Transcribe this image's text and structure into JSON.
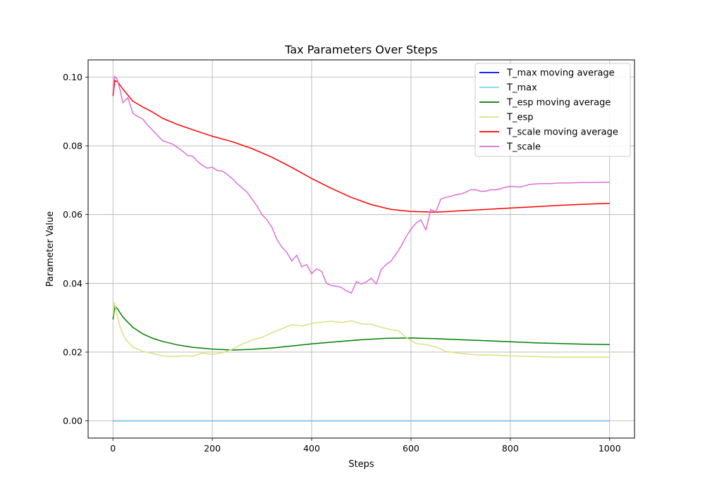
{
  "chart_data": {
    "type": "line",
    "title": "Tax Parameters Over Steps",
    "xlabel": "Steps",
    "ylabel": "Parameter Value",
    "xlim": [
      -50,
      1050
    ],
    "ylim": [
      -0.005,
      0.105
    ],
    "xticks": [
      0,
      200,
      400,
      600,
      800,
      1000
    ],
    "yticks": [
      0.0,
      0.02,
      0.04,
      0.06,
      0.08,
      0.1
    ],
    "xtick_labels": [
      "0",
      "200",
      "400",
      "600",
      "800",
      "1000"
    ],
    "ytick_labels": [
      "0.00",
      "0.02",
      "0.04",
      "0.06",
      "0.08",
      "0.10"
    ],
    "grid": true,
    "legend_position": "top-right",
    "series": [
      {
        "name": "T_max moving average",
        "color": "#0000ff",
        "points": [
          [
            0,
            0.0
          ],
          [
            1000,
            0.0
          ]
        ]
      },
      {
        "name": "T_max",
        "color": "#7fd4e6",
        "points": [
          [
            0,
            0.0
          ],
          [
            1000,
            0.0
          ]
        ]
      },
      {
        "name": "T_esp moving average",
        "color": "#008000",
        "points": [
          [
            0,
            0.0295
          ],
          [
            4,
            0.0332
          ],
          [
            8,
            0.0328
          ],
          [
            20,
            0.0302
          ],
          [
            40,
            0.0272
          ],
          [
            60,
            0.0253
          ],
          [
            80,
            0.024
          ],
          [
            100,
            0.0231
          ],
          [
            130,
            0.0221
          ],
          [
            160,
            0.0214
          ],
          [
            200,
            0.0209
          ],
          [
            240,
            0.0206
          ],
          [
            280,
            0.0208
          ],
          [
            320,
            0.0212
          ],
          [
            360,
            0.0218
          ],
          [
            400,
            0.0224
          ],
          [
            450,
            0.023
          ],
          [
            500,
            0.0236
          ],
          [
            550,
            0.024
          ],
          [
            600,
            0.0241
          ],
          [
            650,
            0.0239
          ],
          [
            700,
            0.0236
          ],
          [
            750,
            0.0233
          ],
          [
            800,
            0.023
          ],
          [
            850,
            0.0227
          ],
          [
            900,
            0.0225
          ],
          [
            950,
            0.0223
          ],
          [
            1000,
            0.0222
          ]
        ]
      },
      {
        "name": "T_esp",
        "color": "#dede82",
        "points": [
          [
            0,
            0.0305
          ],
          [
            3,
            0.0345
          ],
          [
            8,
            0.031
          ],
          [
            15,
            0.027
          ],
          [
            25,
            0.0238
          ],
          [
            40,
            0.0215
          ],
          [
            60,
            0.0202
          ],
          [
            80,
            0.0196
          ],
          [
            100,
            0.0189
          ],
          [
            120,
            0.0187
          ],
          [
            140,
            0.0189
          ],
          [
            160,
            0.0188
          ],
          [
            180,
            0.0197
          ],
          [
            200,
            0.0193
          ],
          [
            220,
            0.0198
          ],
          [
            240,
            0.0208
          ],
          [
            260,
            0.0223
          ],
          [
            280,
            0.0235
          ],
          [
            300,
            0.0243
          ],
          [
            320,
            0.0256
          ],
          [
            340,
            0.0268
          ],
          [
            360,
            0.028
          ],
          [
            380,
            0.0276
          ],
          [
            400,
            0.0283
          ],
          [
            420,
            0.0287
          ],
          [
            440,
            0.029
          ],
          [
            460,
            0.0286
          ],
          [
            480,
            0.0291
          ],
          [
            500,
            0.0282
          ],
          [
            520,
            0.0281
          ],
          [
            540,
            0.0272
          ],
          [
            560,
            0.0265
          ],
          [
            575,
            0.0262
          ],
          [
            590,
            0.0243
          ],
          [
            610,
            0.0225
          ],
          [
            630,
            0.0222
          ],
          [
            650,
            0.0215
          ],
          [
            670,
            0.0202
          ],
          [
            700,
            0.0196
          ],
          [
            730,
            0.0192
          ],
          [
            760,
            0.0192
          ],
          [
            800,
            0.0189
          ],
          [
            850,
            0.0187
          ],
          [
            900,
            0.0185
          ],
          [
            950,
            0.0185
          ],
          [
            1000,
            0.0185
          ]
        ]
      },
      {
        "name": "T_scale moving average",
        "color": "#ff0000",
        "points": [
          [
            0,
            0.0945
          ],
          [
            4,
            0.099
          ],
          [
            10,
            0.0985
          ],
          [
            20,
            0.0965
          ],
          [
            40,
            0.093
          ],
          [
            60,
            0.0913
          ],
          [
            80,
            0.0898
          ],
          [
            100,
            0.088
          ],
          [
            130,
            0.0862
          ],
          [
            160,
            0.0847
          ],
          [
            200,
            0.0828
          ],
          [
            240,
            0.0812
          ],
          [
            280,
            0.0792
          ],
          [
            320,
            0.0767
          ],
          [
            360,
            0.0737
          ],
          [
            400,
            0.0705
          ],
          [
            440,
            0.0676
          ],
          [
            480,
            0.065
          ],
          [
            520,
            0.0629
          ],
          [
            560,
            0.0615
          ],
          [
            600,
            0.0609
          ],
          [
            650,
            0.0607
          ],
          [
            700,
            0.0611
          ],
          [
            750,
            0.0615
          ],
          [
            800,
            0.0619
          ],
          [
            850,
            0.0623
          ],
          [
            900,
            0.0627
          ],
          [
            950,
            0.063
          ],
          [
            1000,
            0.0633
          ]
        ]
      },
      {
        "name": "T_scale",
        "color": "#da70d6",
        "points": [
          [
            0,
            0.0955
          ],
          [
            3,
            0.1002
          ],
          [
            8,
            0.0995
          ],
          [
            14,
            0.0965
          ],
          [
            20,
            0.0925
          ],
          [
            30,
            0.094
          ],
          [
            40,
            0.0895
          ],
          [
            50,
            0.0885
          ],
          [
            60,
            0.0878
          ],
          [
            70,
            0.086
          ],
          [
            80,
            0.0845
          ],
          [
            90,
            0.083
          ],
          [
            100,
            0.0815
          ],
          [
            110,
            0.081
          ],
          [
            120,
            0.0805
          ],
          [
            130,
            0.0795
          ],
          [
            140,
            0.0785
          ],
          [
            150,
            0.0772
          ],
          [
            160,
            0.077
          ],
          [
            170,
            0.0755
          ],
          [
            180,
            0.0743
          ],
          [
            190,
            0.0735
          ],
          [
            200,
            0.0738
          ],
          [
            210,
            0.0728
          ],
          [
            220,
            0.0727
          ],
          [
            230,
            0.0717
          ],
          [
            240,
            0.0705
          ],
          [
            250,
            0.069
          ],
          [
            260,
            0.0678
          ],
          [
            270,
            0.0665
          ],
          [
            280,
            0.0645
          ],
          [
            290,
            0.0625
          ],
          [
            300,
            0.06
          ],
          [
            310,
            0.0585
          ],
          [
            320,
            0.0563
          ],
          [
            330,
            0.0528
          ],
          [
            340,
            0.0506
          ],
          [
            350,
            0.049
          ],
          [
            360,
            0.0465
          ],
          [
            370,
            0.0482
          ],
          [
            380,
            0.0448
          ],
          [
            390,
            0.0455
          ],
          [
            400,
            0.0428
          ],
          [
            410,
            0.0442
          ],
          [
            420,
            0.0435
          ],
          [
            430,
            0.04
          ],
          [
            440,
            0.0393
          ],
          [
            450,
            0.0392
          ],
          [
            460,
            0.0388
          ],
          [
            470,
            0.0378
          ],
          [
            480,
            0.0372
          ],
          [
            490,
            0.0405
          ],
          [
            500,
            0.0398
          ],
          [
            510,
            0.0404
          ],
          [
            520,
            0.0415
          ],
          [
            530,
            0.0398
          ],
          [
            540,
            0.044
          ],
          [
            550,
            0.0455
          ],
          [
            560,
            0.0465
          ],
          [
            570,
            0.0485
          ],
          [
            580,
            0.0508
          ],
          [
            590,
            0.0535
          ],
          [
            600,
            0.0558
          ],
          [
            610,
            0.0575
          ],
          [
            620,
            0.0585
          ],
          [
            630,
            0.0555
          ],
          [
            640,
            0.0615
          ],
          [
            650,
            0.0608
          ],
          [
            660,
            0.0645
          ],
          [
            670,
            0.065
          ],
          [
            680,
            0.0653
          ],
          [
            690,
            0.0658
          ],
          [
            700,
            0.066
          ],
          [
            710,
            0.0665
          ],
          [
            720,
            0.0672
          ],
          [
            730,
            0.0672
          ],
          [
            740,
            0.0668
          ],
          [
            750,
            0.0668
          ],
          [
            760,
            0.0672
          ],
          [
            770,
            0.0672
          ],
          [
            780,
            0.0675
          ],
          [
            790,
            0.068
          ],
          [
            800,
            0.0682
          ],
          [
            820,
            0.068
          ],
          [
            840,
            0.0688
          ],
          [
            860,
            0.069
          ],
          [
            880,
            0.069
          ],
          [
            900,
            0.0692
          ],
          [
            920,
            0.0692
          ],
          [
            940,
            0.0693
          ],
          [
            960,
            0.0693
          ],
          [
            980,
            0.0694
          ],
          [
            1000,
            0.0694
          ]
        ]
      }
    ]
  }
}
